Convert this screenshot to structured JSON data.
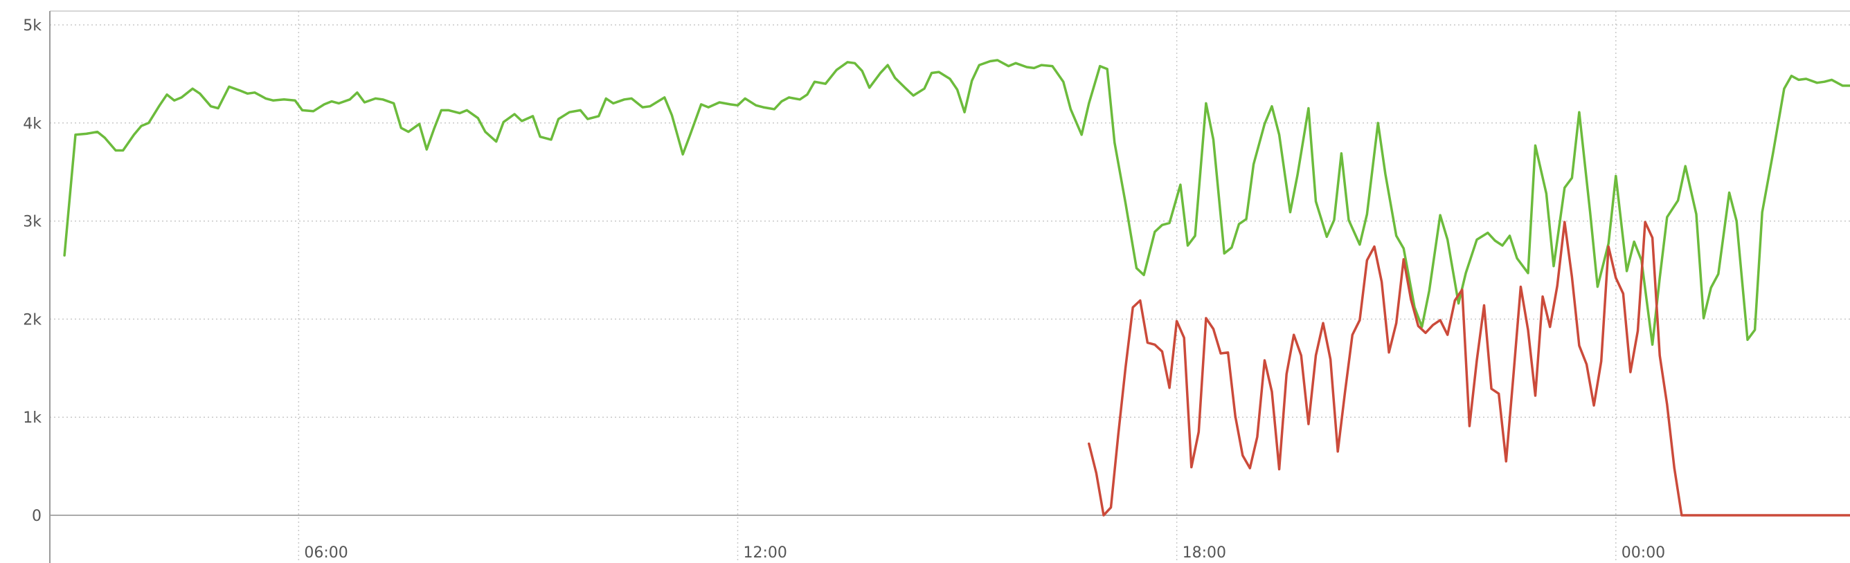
{
  "chart_data": {
    "type": "line",
    "title": "",
    "xlabel": "",
    "ylabel": "",
    "x_range": [
      2.6,
      27.2
    ],
    "x_unit": "hours from 00:00 of day 1",
    "ylim": [
      0,
      5000
    ],
    "grid": true,
    "legend": "none",
    "y_ticks": [
      {
        "value": 0,
        "label": "0"
      },
      {
        "value": 1000,
        "label": "1k"
      },
      {
        "value": 2000,
        "label": "2k"
      },
      {
        "value": 3000,
        "label": "3k"
      },
      {
        "value": 4000,
        "label": "4k"
      },
      {
        "value": 5000,
        "label": "5k"
      }
    ],
    "x_ticks": [
      {
        "value": 6,
        "label": "06:00"
      },
      {
        "value": 12,
        "label": "12:00"
      },
      {
        "value": 18,
        "label": "18:00"
      },
      {
        "value": 24,
        "label": "00:00"
      }
    ],
    "series": [
      {
        "color": "#6cbb3c",
        "points": [
          [
            2.8,
            2650
          ],
          [
            2.95,
            3880
          ],
          [
            3.1,
            3890
          ],
          [
            3.25,
            3910
          ],
          [
            3.35,
            3850
          ],
          [
            3.5,
            3720
          ],
          [
            3.6,
            3720
          ],
          [
            3.75,
            3880
          ],
          [
            3.85,
            3970
          ],
          [
            3.95,
            4000
          ],
          [
            4.1,
            4180
          ],
          [
            4.2,
            4290
          ],
          [
            4.3,
            4230
          ],
          [
            4.4,
            4260
          ],
          [
            4.55,
            4350
          ],
          [
            4.65,
            4300
          ],
          [
            4.8,
            4170
          ],
          [
            4.9,
            4150
          ],
          [
            5.05,
            4370
          ],
          [
            5.2,
            4330
          ],
          [
            5.3,
            4300
          ],
          [
            5.4,
            4310
          ],
          [
            5.55,
            4250
          ],
          [
            5.65,
            4230
          ],
          [
            5.8,
            4240
          ],
          [
            5.95,
            4230
          ],
          [
            6.05,
            4130
          ],
          [
            6.2,
            4120
          ],
          [
            6.35,
            4190
          ],
          [
            6.45,
            4220
          ],
          [
            6.55,
            4200
          ],
          [
            6.7,
            4240
          ],
          [
            6.8,
            4310
          ],
          [
            6.9,
            4210
          ],
          [
            7.05,
            4250
          ],
          [
            7.15,
            4240
          ],
          [
            7.3,
            4200
          ],
          [
            7.4,
            3950
          ],
          [
            7.5,
            3910
          ],
          [
            7.65,
            3990
          ],
          [
            7.75,
            3730
          ],
          [
            7.85,
            3940
          ],
          [
            7.95,
            4130
          ],
          [
            8.05,
            4130
          ],
          [
            8.2,
            4100
          ],
          [
            8.3,
            4130
          ],
          [
            8.45,
            4050
          ],
          [
            8.55,
            3910
          ],
          [
            8.7,
            3810
          ],
          [
            8.8,
            4010
          ],
          [
            8.95,
            4090
          ],
          [
            9.05,
            4020
          ],
          [
            9.2,
            4070
          ],
          [
            9.3,
            3860
          ],
          [
            9.45,
            3830
          ],
          [
            9.55,
            4040
          ],
          [
            9.7,
            4110
          ],
          [
            9.85,
            4130
          ],
          [
            9.95,
            4040
          ],
          [
            10.1,
            4070
          ],
          [
            10.2,
            4250
          ],
          [
            10.3,
            4200
          ],
          [
            10.45,
            4240
          ],
          [
            10.55,
            4250
          ],
          [
            10.7,
            4160
          ],
          [
            10.8,
            4170
          ],
          [
            11.0,
            4260
          ],
          [
            11.1,
            4080
          ],
          [
            11.25,
            3680
          ],
          [
            11.35,
            3880
          ],
          [
            11.5,
            4190
          ],
          [
            11.6,
            4160
          ],
          [
            11.75,
            4210
          ],
          [
            11.9,
            4190
          ],
          [
            12.0,
            4180
          ],
          [
            12.1,
            4250
          ],
          [
            12.25,
            4180
          ],
          [
            12.35,
            4160
          ],
          [
            12.5,
            4140
          ],
          [
            12.6,
            4220
          ],
          [
            12.7,
            4260
          ],
          [
            12.85,
            4240
          ],
          [
            12.95,
            4290
          ],
          [
            13.05,
            4420
          ],
          [
            13.2,
            4400
          ],
          [
            13.35,
            4540
          ],
          [
            13.5,
            4620
          ],
          [
            13.6,
            4610
          ],
          [
            13.7,
            4530
          ],
          [
            13.8,
            4360
          ],
          [
            13.95,
            4510
          ],
          [
            14.05,
            4590
          ],
          [
            14.15,
            4460
          ],
          [
            14.3,
            4350
          ],
          [
            14.4,
            4280
          ],
          [
            14.55,
            4350
          ],
          [
            14.65,
            4510
          ],
          [
            14.75,
            4520
          ],
          [
            14.9,
            4450
          ],
          [
            15.0,
            4340
          ],
          [
            15.1,
            4110
          ],
          [
            15.2,
            4430
          ],
          [
            15.3,
            4590
          ],
          [
            15.45,
            4630
          ],
          [
            15.55,
            4640
          ],
          [
            15.7,
            4580
          ],
          [
            15.8,
            4610
          ],
          [
            15.95,
            4570
          ],
          [
            16.05,
            4560
          ],
          [
            16.15,
            4590
          ],
          [
            16.3,
            4580
          ],
          [
            16.45,
            4420
          ],
          [
            16.55,
            4140
          ],
          [
            16.7,
            3880
          ],
          [
            16.8,
            4200
          ],
          [
            16.95,
            4580
          ],
          [
            17.05,
            4550
          ],
          [
            17.15,
            3800
          ],
          [
            17.3,
            3180
          ],
          [
            17.45,
            2520
          ],
          [
            17.55,
            2450
          ],
          [
            17.7,
            2890
          ],
          [
            17.8,
            2960
          ],
          [
            17.9,
            2980
          ],
          [
            18.05,
            3370
          ],
          [
            18.15,
            2750
          ],
          [
            18.25,
            2850
          ],
          [
            18.4,
            4200
          ],
          [
            18.5,
            3830
          ],
          [
            18.65,
            2670
          ],
          [
            18.75,
            2730
          ],
          [
            18.85,
            2970
          ],
          [
            18.95,
            3020
          ],
          [
            19.05,
            3580
          ],
          [
            19.2,
            3990
          ],
          [
            19.3,
            4170
          ],
          [
            19.4,
            3880
          ],
          [
            19.55,
            3090
          ],
          [
            19.65,
            3470
          ],
          [
            19.8,
            4150
          ],
          [
            19.9,
            3200
          ],
          [
            20.05,
            2840
          ],
          [
            20.15,
            3010
          ],
          [
            20.25,
            3690
          ],
          [
            20.35,
            3010
          ],
          [
            20.5,
            2760
          ],
          [
            20.6,
            3070
          ],
          [
            20.75,
            4000
          ],
          [
            20.85,
            3480
          ],
          [
            21.0,
            2850
          ],
          [
            21.1,
            2720
          ],
          [
            21.25,
            2120
          ],
          [
            21.35,
            1920
          ],
          [
            21.45,
            2290
          ],
          [
            21.6,
            3060
          ],
          [
            21.7,
            2810
          ],
          [
            21.85,
            2160
          ],
          [
            21.95,
            2470
          ],
          [
            22.1,
            2810
          ],
          [
            22.25,
            2880
          ],
          [
            22.35,
            2800
          ],
          [
            22.45,
            2750
          ],
          [
            22.55,
            2850
          ],
          [
            22.65,
            2620
          ],
          [
            22.8,
            2470
          ],
          [
            22.9,
            3770
          ],
          [
            23.05,
            3280
          ],
          [
            23.15,
            2540
          ],
          [
            23.3,
            3340
          ],
          [
            23.4,
            3440
          ],
          [
            23.5,
            4110
          ],
          [
            23.65,
            3080
          ],
          [
            23.75,
            2330
          ],
          [
            23.9,
            2770
          ],
          [
            24.0,
            3460
          ],
          [
            24.15,
            2490
          ],
          [
            24.25,
            2790
          ],
          [
            24.35,
            2600
          ],
          [
            24.5,
            1740
          ],
          [
            24.6,
            2420
          ],
          [
            24.7,
            3040
          ],
          [
            24.85,
            3210
          ],
          [
            24.95,
            3560
          ],
          [
            25.1,
            3070
          ],
          [
            25.2,
            2010
          ],
          [
            25.3,
            2320
          ],
          [
            25.4,
            2460
          ],
          [
            25.55,
            3290
          ],
          [
            25.65,
            3000
          ],
          [
            25.8,
            1790
          ],
          [
            25.9,
            1890
          ],
          [
            26.0,
            3090
          ],
          [
            26.15,
            3700
          ],
          [
            26.3,
            4350
          ],
          [
            26.4,
            4480
          ],
          [
            26.5,
            4440
          ],
          [
            26.6,
            4450
          ],
          [
            26.75,
            4410
          ],
          [
            26.85,
            4420
          ],
          [
            26.95,
            4440
          ],
          [
            27.1,
            4380
          ],
          [
            27.2,
            4380
          ]
        ]
      },
      {
        "color": "#cb4a3a",
        "points": [
          [
            16.8,
            730
          ],
          [
            16.9,
            430
          ],
          [
            17.0,
            0
          ],
          [
            17.1,
            80
          ],
          [
            17.2,
            820
          ],
          [
            17.3,
            1510
          ],
          [
            17.4,
            2120
          ],
          [
            17.5,
            2190
          ],
          [
            17.6,
            1760
          ],
          [
            17.7,
            1740
          ],
          [
            17.8,
            1670
          ],
          [
            17.9,
            1300
          ],
          [
            18.0,
            1980
          ],
          [
            18.1,
            1810
          ],
          [
            18.2,
            490
          ],
          [
            18.3,
            850
          ],
          [
            18.4,
            2010
          ],
          [
            18.5,
            1900
          ],
          [
            18.6,
            1650
          ],
          [
            18.7,
            1660
          ],
          [
            18.8,
            1010
          ],
          [
            18.9,
            610
          ],
          [
            19.0,
            480
          ],
          [
            19.1,
            800
          ],
          [
            19.2,
            1580
          ],
          [
            19.3,
            1260
          ],
          [
            19.4,
            470
          ],
          [
            19.5,
            1440
          ],
          [
            19.6,
            1840
          ],
          [
            19.7,
            1630
          ],
          [
            19.8,
            930
          ],
          [
            19.9,
            1630
          ],
          [
            20.0,
            1960
          ],
          [
            20.1,
            1590
          ],
          [
            20.2,
            650
          ],
          [
            20.3,
            1260
          ],
          [
            20.4,
            1840
          ],
          [
            20.5,
            1990
          ],
          [
            20.6,
            2600
          ],
          [
            20.7,
            2740
          ],
          [
            20.8,
            2380
          ],
          [
            20.9,
            1660
          ],
          [
            21.0,
            1960
          ],
          [
            21.1,
            2610
          ],
          [
            21.2,
            2200
          ],
          [
            21.3,
            1930
          ],
          [
            21.4,
            1860
          ],
          [
            21.5,
            1940
          ],
          [
            21.6,
            1990
          ],
          [
            21.7,
            1840
          ],
          [
            21.8,
            2190
          ],
          [
            21.9,
            2300
          ],
          [
            22.0,
            910
          ],
          [
            22.1,
            1580
          ],
          [
            22.2,
            2140
          ],
          [
            22.3,
            1290
          ],
          [
            22.4,
            1240
          ],
          [
            22.5,
            550
          ],
          [
            22.6,
            1420
          ],
          [
            22.7,
            2330
          ],
          [
            22.8,
            1890
          ],
          [
            22.9,
            1220
          ],
          [
            23.0,
            2230
          ],
          [
            23.1,
            1920
          ],
          [
            23.2,
            2340
          ],
          [
            23.3,
            2990
          ],
          [
            23.4,
            2430
          ],
          [
            23.5,
            1730
          ],
          [
            23.6,
            1540
          ],
          [
            23.7,
            1120
          ],
          [
            23.8,
            1570
          ],
          [
            23.9,
            2740
          ],
          [
            24.0,
            2420
          ],
          [
            24.1,
            2260
          ],
          [
            24.2,
            1460
          ],
          [
            24.3,
            1880
          ],
          [
            24.4,
            2990
          ],
          [
            24.5,
            2830
          ],
          [
            24.6,
            1630
          ],
          [
            24.7,
            1130
          ],
          [
            24.8,
            480
          ],
          [
            24.9,
            0
          ],
          [
            27.2,
            0
          ]
        ]
      }
    ]
  }
}
